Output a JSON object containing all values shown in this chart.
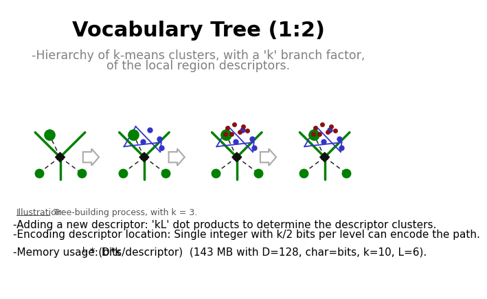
{
  "title": "Vocabulary Tree (1:2)",
  "subtitle_line1": "-Hierarchy of k-means clusters, with a 'k' branch factor,",
  "subtitle_line2": "of the local region descriptors.",
  "illustration_label": "Illustration:",
  "illustration_text": " Tree-building process, with k = 3.",
  "bullet1": "-Adding a new descriptor: 'kL' dot products to determine the descriptor clusters.",
  "bullet2": "-Encoding descriptor location: Single integer with k/2 bits per level can encode the path.",
  "bullet3_pre": "-Memory usage: D*k",
  "bullet3_super": "L",
  "bullet3_post": " * (bits/descriptor)  (143 MB with D=128, char=bits, k=10, L=6).",
  "bg_color": "#ffffff",
  "title_color": "#000000",
  "subtitle_color": "#808080",
  "text_color": "#000000",
  "green_color": "#008000",
  "blue_color": "#3333cc",
  "dark_red_color": "#8b1010",
  "dashed_color": "#222222",
  "diamond_color": "#111111",
  "arrow_edge_color": "#aaaaaa",
  "illus_color": "#555555",
  "underline_color": "#555555"
}
